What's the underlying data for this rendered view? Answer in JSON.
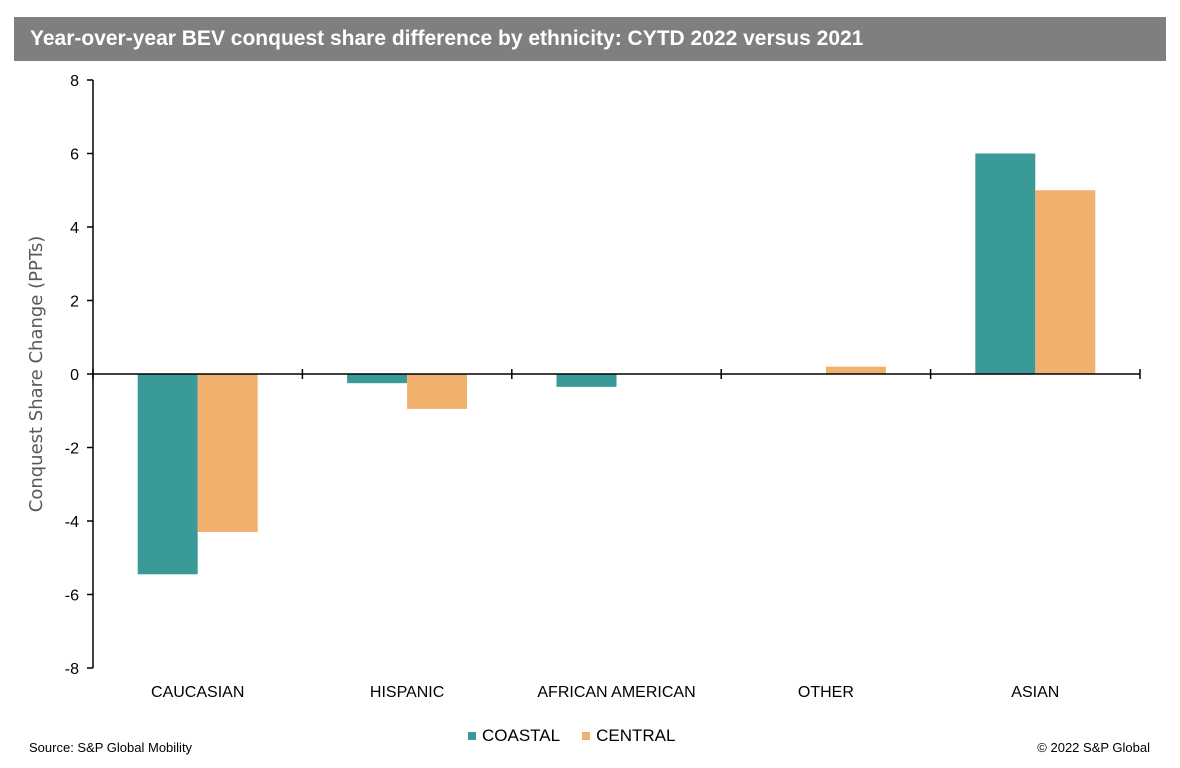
{
  "chart_data": {
    "type": "bar",
    "title": "Year-over-year BEV conquest share difference by ethnicity: CYTD 2022 versus 2021",
    "xlabel": "",
    "ylabel": "Conquest Share Change (PPTs)",
    "ylim": [
      -8,
      8
    ],
    "yticks": [
      8,
      6,
      4,
      2,
      0,
      -2,
      -4,
      -6,
      -8
    ],
    "categories": [
      "CAUCASIAN",
      "HISPANIC",
      "AFRICAN AMERICAN",
      "OTHER",
      "ASIAN"
    ],
    "series": [
      {
        "name": "COASTAL",
        "color": "#3a9a98",
        "values": [
          -5.45,
          -0.25,
          -0.35,
          0,
          6.0
        ]
      },
      {
        "name": "CENTRAL",
        "color": "#f2b06e",
        "values": [
          -4.3,
          -0.95,
          0,
          0.2,
          5.0
        ]
      }
    ],
    "grid": false,
    "legend_position": "bottom"
  },
  "footer": {
    "source": "Source: S&P Global Mobility",
    "copyright": "© 2022 S&P Global"
  }
}
